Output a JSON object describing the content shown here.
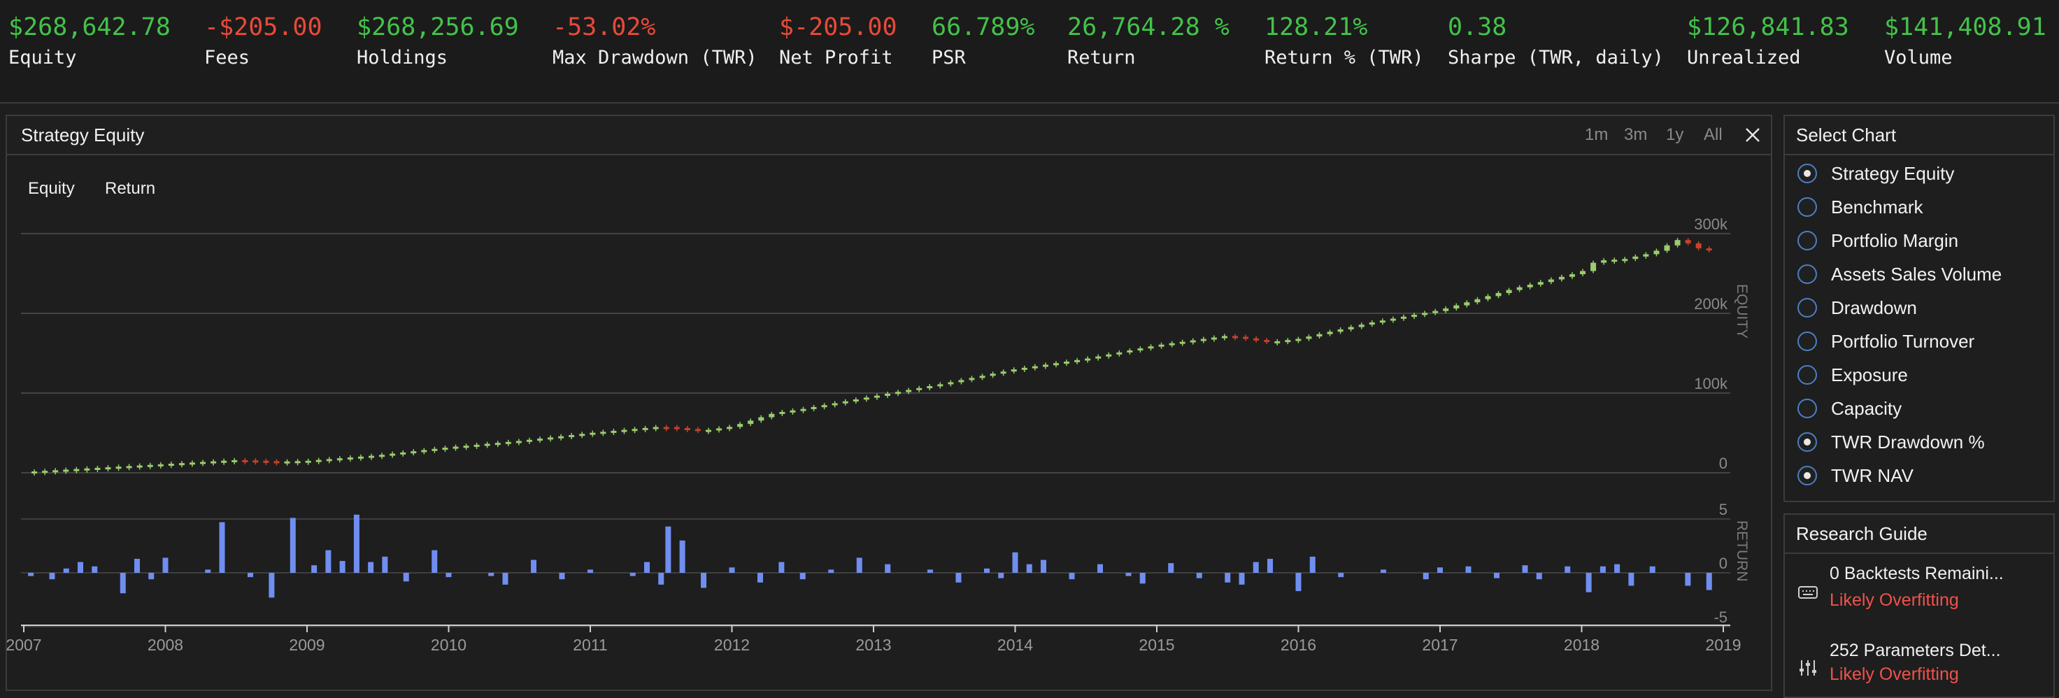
{
  "stats": [
    {
      "value": "$268,642.78",
      "label": "Equity",
      "tone": "pos"
    },
    {
      "value": "-$205.00",
      "label": "Fees",
      "tone": "neg"
    },
    {
      "value": "$268,256.69",
      "label": "Holdings",
      "tone": "pos"
    },
    {
      "value": "-53.02%",
      "label": "Max Drawdown (TWR)",
      "tone": "neg"
    },
    {
      "value": "$-205.00",
      "label": "Net Profit",
      "tone": "neg"
    },
    {
      "value": "66.789%",
      "label": "PSR",
      "tone": "pos"
    },
    {
      "value": "26,764.28 %",
      "label": "Return",
      "tone": "pos"
    },
    {
      "value": "128.21%",
      "label": "Return % (TWR)",
      "tone": "pos"
    },
    {
      "value": "0.38",
      "label": "Sharpe (TWR, daily)",
      "tone": "pos"
    },
    {
      "value": "$126,841.83",
      "label": "Unrealized",
      "tone": "pos"
    },
    {
      "value": "$141,408.91",
      "label": "Volume",
      "tone": "pos"
    }
  ],
  "chart_panel": {
    "title": "Strategy Equity",
    "ranges": [
      "1m",
      "3m",
      "1y",
      "All"
    ],
    "legend": [
      "Equity",
      "Return"
    ]
  },
  "select_chart": {
    "title": "Select Chart",
    "items": [
      {
        "label": "Strategy Equity",
        "selected": true
      },
      {
        "label": "Benchmark",
        "selected": false
      },
      {
        "label": "Portfolio Margin",
        "selected": false
      },
      {
        "label": "Assets Sales Volume",
        "selected": false
      },
      {
        "label": "Drawdown",
        "selected": false
      },
      {
        "label": "Portfolio Turnover",
        "selected": false
      },
      {
        "label": "Exposure",
        "selected": false
      },
      {
        "label": "Capacity",
        "selected": false
      },
      {
        "label": "TWR Drawdown %",
        "selected": true
      },
      {
        "label": "TWR NAV",
        "selected": true
      }
    ]
  },
  "research_guide": {
    "title": "Research Guide",
    "items": [
      {
        "title": "0 Backtests Remaini...",
        "status": "Likely Overfitting",
        "icon": "keyboard-icon"
      },
      {
        "title": "252 Parameters Det...",
        "status": "Likely Overfitting",
        "icon": "sliders-icon"
      }
    ]
  },
  "colors": {
    "positive": "#43c24a",
    "negative": "#e84a3a",
    "candle_up": "#9acd6e",
    "candle_down": "#c8422a",
    "return_bar": "#6f8ef0",
    "accent": "#4a7fc4"
  },
  "chart_data": {
    "type": "candlestick",
    "equity_axis": {
      "label": "EQUITY",
      "ticks": [
        "300k",
        "200k",
        "100k",
        "0"
      ],
      "values": [
        300000,
        200000,
        100000,
        0
      ],
      "ylim": [
        0,
        300000
      ]
    },
    "return_axis": {
      "label": "RETURN",
      "ticks": [
        "5",
        "0",
        "-5"
      ],
      "values": [
        5,
        0,
        -5
      ],
      "ylim": [
        -5,
        5
      ]
    },
    "x_axis": {
      "ticks": [
        "2007",
        "2008",
        "2009",
        "2010",
        "2011",
        "2012",
        "2013",
        "2014",
        "2015",
        "2016",
        "2017",
        "2018",
        "2019"
      ],
      "xlim": [
        2007,
        2019
      ]
    },
    "equity": [
      {
        "x": 2007.0,
        "y": 1000
      },
      {
        "x": 2007.5,
        "y": 6000
      },
      {
        "x": 2008.0,
        "y": 11000
      },
      {
        "x": 2008.5,
        "y": 16000
      },
      {
        "x": 2008.8,
        "y": 14000
      },
      {
        "x": 2009.0,
        "y": 15000
      },
      {
        "x": 2009.5,
        "y": 22000
      },
      {
        "x": 2010.0,
        "y": 32000
      },
      {
        "x": 2010.5,
        "y": 40000
      },
      {
        "x": 2011.0,
        "y": 50000
      },
      {
        "x": 2011.5,
        "y": 58000
      },
      {
        "x": 2011.8,
        "y": 53000
      },
      {
        "x": 2012.0,
        "y": 58000
      },
      {
        "x": 2012.3,
        "y": 75000
      },
      {
        "x": 2012.5,
        "y": 80000
      },
      {
        "x": 2013.0,
        "y": 96000
      },
      {
        "x": 2013.5,
        "y": 112000
      },
      {
        "x": 2014.0,
        "y": 130000
      },
      {
        "x": 2014.5,
        "y": 143000
      },
      {
        "x": 2015.0,
        "y": 160000
      },
      {
        "x": 2015.5,
        "y": 172000
      },
      {
        "x": 2015.8,
        "y": 164000
      },
      {
        "x": 2016.0,
        "y": 168000
      },
      {
        "x": 2016.5,
        "y": 188000
      },
      {
        "x": 2017.0,
        "y": 204000
      },
      {
        "x": 2017.5,
        "y": 230000
      },
      {
        "x": 2018.0,
        "y": 252000
      },
      {
        "x": 2018.1,
        "y": 266000
      },
      {
        "x": 2018.3,
        "y": 268000
      },
      {
        "x": 2018.5,
        "y": 276000
      },
      {
        "x": 2018.7,
        "y": 294000
      },
      {
        "x": 2018.8,
        "y": 282000
      },
      {
        "x": 2018.9,
        "y": 280000
      }
    ],
    "returns": [
      {
        "x": 2007.05,
        "y": -0.3
      },
      {
        "x": 2007.2,
        "y": -0.6
      },
      {
        "x": 2007.3,
        "y": 0.4
      },
      {
        "x": 2007.4,
        "y": 1.0
      },
      {
        "x": 2007.5,
        "y": 0.6
      },
      {
        "x": 2007.7,
        "y": -1.9
      },
      {
        "x": 2007.8,
        "y": 1.3
      },
      {
        "x": 2007.9,
        "y": -0.6
      },
      {
        "x": 2008.0,
        "y": 1.4
      },
      {
        "x": 2008.3,
        "y": 0.3
      },
      {
        "x": 2008.4,
        "y": 4.7
      },
      {
        "x": 2008.6,
        "y": -0.4
      },
      {
        "x": 2008.75,
        "y": -2.3
      },
      {
        "x": 2008.9,
        "y": 5.1
      },
      {
        "x": 2009.05,
        "y": 0.7
      },
      {
        "x": 2009.15,
        "y": 2.1
      },
      {
        "x": 2009.25,
        "y": 1.1
      },
      {
        "x": 2009.35,
        "y": 5.4
      },
      {
        "x": 2009.45,
        "y": 1.0
      },
      {
        "x": 2009.55,
        "y": 1.5
      },
      {
        "x": 2009.7,
        "y": -0.8
      },
      {
        "x": 2009.9,
        "y": 2.1
      },
      {
        "x": 2010.0,
        "y": -0.4
      },
      {
        "x": 2010.3,
        "y": -0.3
      },
      {
        "x": 2010.4,
        "y": -1.1
      },
      {
        "x": 2010.6,
        "y": 1.2
      },
      {
        "x": 2010.8,
        "y": -0.6
      },
      {
        "x": 2011.0,
        "y": 0.3
      },
      {
        "x": 2011.3,
        "y": -0.3
      },
      {
        "x": 2011.4,
        "y": 1.0
      },
      {
        "x": 2011.5,
        "y": -1.1
      },
      {
        "x": 2011.55,
        "y": 4.3
      },
      {
        "x": 2011.65,
        "y": 3.0
      },
      {
        "x": 2011.8,
        "y": -1.4
      },
      {
        "x": 2012.0,
        "y": 0.5
      },
      {
        "x": 2012.2,
        "y": -0.9
      },
      {
        "x": 2012.35,
        "y": 1.0
      },
      {
        "x": 2012.5,
        "y": -0.6
      },
      {
        "x": 2012.7,
        "y": 0.3
      },
      {
        "x": 2012.9,
        "y": 1.4
      },
      {
        "x": 2013.1,
        "y": 0.8
      },
      {
        "x": 2013.4,
        "y": 0.3
      },
      {
        "x": 2013.6,
        "y": -0.9
      },
      {
        "x": 2013.8,
        "y": 0.4
      },
      {
        "x": 2013.9,
        "y": -0.5
      },
      {
        "x": 2014.0,
        "y": 1.9
      },
      {
        "x": 2014.1,
        "y": 0.8
      },
      {
        "x": 2014.2,
        "y": 1.2
      },
      {
        "x": 2014.4,
        "y": -0.6
      },
      {
        "x": 2014.6,
        "y": 0.8
      },
      {
        "x": 2014.8,
        "y": -0.3
      },
      {
        "x": 2014.9,
        "y": -1.0
      },
      {
        "x": 2015.1,
        "y": 0.9
      },
      {
        "x": 2015.3,
        "y": -0.5
      },
      {
        "x": 2015.5,
        "y": -0.9
      },
      {
        "x": 2015.6,
        "y": -1.1
      },
      {
        "x": 2015.7,
        "y": 1.0
      },
      {
        "x": 2015.8,
        "y": 1.3
      },
      {
        "x": 2016.0,
        "y": -1.7
      },
      {
        "x": 2016.1,
        "y": 1.5
      },
      {
        "x": 2016.3,
        "y": -0.4
      },
      {
        "x": 2016.6,
        "y": 0.3
      },
      {
        "x": 2016.9,
        "y": -0.6
      },
      {
        "x": 2017.0,
        "y": 0.5
      },
      {
        "x": 2017.2,
        "y": 0.6
      },
      {
        "x": 2017.4,
        "y": -0.5
      },
      {
        "x": 2017.6,
        "y": 0.7
      },
      {
        "x": 2017.7,
        "y": -0.6
      },
      {
        "x": 2017.9,
        "y": 0.6
      },
      {
        "x": 2018.05,
        "y": -1.8
      },
      {
        "x": 2018.15,
        "y": 0.6
      },
      {
        "x": 2018.25,
        "y": 0.8
      },
      {
        "x": 2018.35,
        "y": -1.2
      },
      {
        "x": 2018.5,
        "y": 0.6
      },
      {
        "x": 2018.75,
        "y": -1.2
      },
      {
        "x": 2018.9,
        "y": -1.6
      }
    ]
  }
}
